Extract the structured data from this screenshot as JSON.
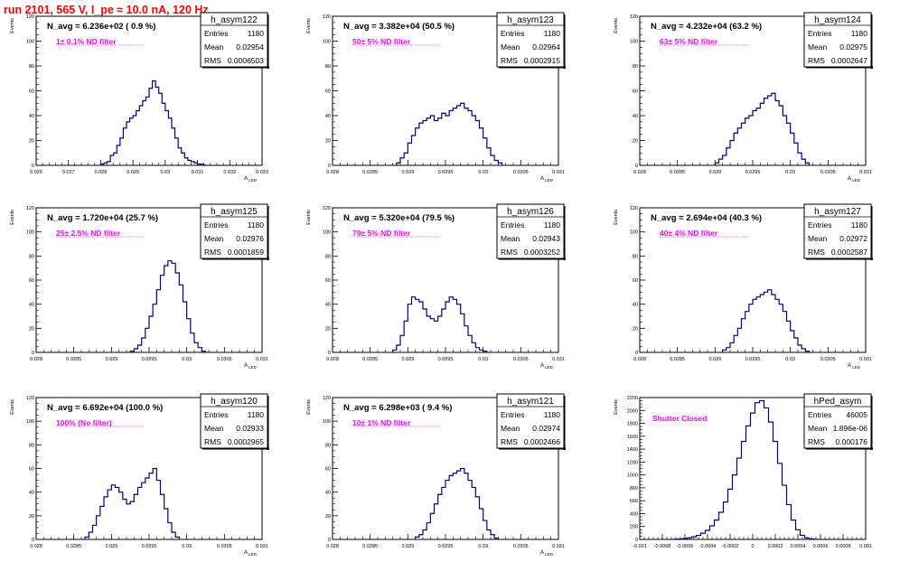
{
  "run_title": "run 2101,   565 V, I_pe ≈ 10.0 nA, 120 Hz",
  "chart_data": [
    {
      "type": "histogram",
      "hist_name": "h_asym122",
      "navg": "N_avg = 6.236e+02 ( 0.9 %)",
      "filter": "1± 0.1% ND filter",
      "stats": [
        [
          "Entries",
          "1180"
        ],
        [
          "Mean",
          "0.02954"
        ],
        [
          "RMS",
          "0.0006503"
        ]
      ],
      "xlim": [
        0.026,
        0.033
      ],
      "ylim": [
        0,
        120
      ],
      "xticks": [
        "0.026",
        "0.027",
        "0.028",
        "0.029",
        "0.03",
        "0.031",
        "0.032",
        "0.033"
      ],
      "yticks": [
        "0",
        "20",
        "40",
        "60",
        "80",
        "100",
        "120"
      ],
      "ylabel": "Events",
      "xlabel": "A_LED",
      "bins": {
        "x": [
          0.028,
          0.0281,
          0.0282,
          0.0283,
          0.0284,
          0.0285,
          0.0286,
          0.0287,
          0.0288,
          0.0289,
          0.029,
          0.0291,
          0.0292,
          0.0293,
          0.0294,
          0.0295,
          0.0296,
          0.0297,
          0.0298,
          0.0299,
          0.03,
          0.0301,
          0.0302,
          0.0303,
          0.0304,
          0.0305,
          0.0306,
          0.0307,
          0.0308,
          0.0309,
          0.031,
          0.0311,
          0.0312
        ],
        "y": [
          1,
          2,
          3,
          8,
          10,
          16,
          22,
          30,
          35,
          38,
          40,
          44,
          48,
          52,
          55,
          62,
          68,
          63,
          58,
          50,
          44,
          38,
          30,
          22,
          14,
          10,
          6,
          4,
          3,
          2,
          1,
          1,
          0
        ]
      }
    },
    {
      "type": "histogram",
      "hist_name": "h_asym123",
      "navg": "N_avg = 3.382e+04 (50.5 %)",
      "filter": "50± 5% ND filter",
      "stats": [
        [
          "Entries",
          "1180"
        ],
        [
          "Mean",
          "0.02964"
        ],
        [
          "RMS",
          "0.0002915"
        ]
      ],
      "xlim": [
        0.028,
        0.031
      ],
      "ylim": [
        0,
        120
      ],
      "xticks": [
        "0.028",
        "0.0285",
        "0.029",
        "0.0295",
        "0.03",
        "0.0305",
        "0.031"
      ],
      "yticks": [
        "0",
        "20",
        "40",
        "60",
        "80",
        "100",
        "120"
      ],
      "ylabel": "Events",
      "xlabel": "A_LED",
      "bins": {
        "x": [
          0.02885,
          0.0289,
          0.02895,
          0.029,
          0.02905,
          0.0291,
          0.02915,
          0.0292,
          0.02925,
          0.0293,
          0.02935,
          0.0294,
          0.02945,
          0.0295,
          0.02955,
          0.0296,
          0.02965,
          0.0297,
          0.02975,
          0.0298,
          0.02985,
          0.0299,
          0.02995,
          0.03,
          0.03005,
          0.0301,
          0.03015,
          0.0302
        ],
        "y": [
          2,
          6,
          10,
          18,
          24,
          30,
          34,
          36,
          38,
          40,
          36,
          38,
          42,
          40,
          44,
          46,
          48,
          50,
          46,
          44,
          40,
          36,
          30,
          22,
          14,
          8,
          4,
          2
        ]
      }
    },
    {
      "type": "histogram",
      "hist_name": "h_asym124",
      "navg": "N_avg = 4.232e+04 (63.2 %)",
      "filter": "63± 5% ND filter",
      "stats": [
        [
          "Entries",
          "1180"
        ],
        [
          "Mean",
          "0.02975"
        ],
        [
          "RMS",
          "0.0002647"
        ]
      ],
      "xlim": [
        0.028,
        0.031
      ],
      "ylim": [
        0,
        120
      ],
      "xticks": [
        "0.028",
        "0.0285",
        "0.029",
        "0.0295",
        "0.03",
        "0.0305",
        "0.031"
      ],
      "yticks": [
        "0",
        "20",
        "40",
        "60",
        "80",
        "100",
        "120"
      ],
      "ylabel": "Events",
      "xlabel": "A_LED",
      "bins": {
        "x": [
          0.029,
          0.02905,
          0.0291,
          0.02915,
          0.0292,
          0.02925,
          0.0293,
          0.02935,
          0.0294,
          0.02945,
          0.0295,
          0.02955,
          0.0296,
          0.02965,
          0.0297,
          0.02975,
          0.0298,
          0.02985,
          0.0299,
          0.02995,
          0.03,
          0.03005,
          0.0301,
          0.03015,
          0.0302
        ],
        "y": [
          2,
          5,
          8,
          14,
          20,
          26,
          30,
          34,
          38,
          40,
          44,
          46,
          50,
          54,
          56,
          58,
          52,
          48,
          40,
          34,
          26,
          18,
          10,
          5,
          2
        ]
      }
    },
    {
      "type": "histogram",
      "hist_name": "h_asym125",
      "navg": "N_avg = 1.720e+04 (25.7 %)",
      "filter": "25± 2.5% ND filter",
      "stats": [
        [
          "Entries",
          "1180"
        ],
        [
          "Mean",
          "0.02976"
        ],
        [
          "RMS",
          "0.0001859"
        ]
      ],
      "xlim": [
        0.028,
        0.031
      ],
      "ylim": [
        0,
        120
      ],
      "xticks": [
        "0.028",
        "0.0285",
        "0.029",
        "0.0295",
        "0.03",
        "0.0305",
        "0.031"
      ],
      "yticks": [
        "0",
        "20",
        "40",
        "60",
        "80",
        "100",
        "120"
      ],
      "ylabel": "Events",
      "xlabel": "A_LED",
      "bins": {
        "x": [
          0.02925,
          0.0293,
          0.02935,
          0.0294,
          0.02945,
          0.0295,
          0.02955,
          0.0296,
          0.02965,
          0.0297,
          0.02975,
          0.0298,
          0.02985,
          0.0299,
          0.02995,
          0.03,
          0.03005,
          0.0301,
          0.03015,
          0.0302
        ],
        "y": [
          1,
          3,
          6,
          12,
          20,
          30,
          40,
          52,
          64,
          72,
          76,
          74,
          66,
          56,
          42,
          28,
          16,
          8,
          4,
          1
        ]
      }
    },
    {
      "type": "histogram",
      "hist_name": "h_asym126",
      "navg": "N_avg = 5.320e+04 (79.5 %)",
      "filter": "79± 5% ND filter",
      "stats": [
        [
          "Entries",
          "1180"
        ],
        [
          "Mean",
          "0.02943"
        ],
        [
          "RMS",
          "0.0003252"
        ]
      ],
      "xlim": [
        0.028,
        0.031
      ],
      "ylim": [
        0,
        120
      ],
      "xticks": [
        "0.028",
        "0.0285",
        "0.029",
        "0.0295",
        "0.03",
        "0.0305",
        "0.031"
      ],
      "yticks": [
        "0",
        "20",
        "40",
        "60",
        "80",
        "100",
        "120"
      ],
      "ylabel": "Events",
      "xlabel": "A_LED",
      "bins": {
        "x": [
          0.0288,
          0.02885,
          0.0289,
          0.02895,
          0.029,
          0.02905,
          0.0291,
          0.02915,
          0.0292,
          0.02925,
          0.0293,
          0.02935,
          0.0294,
          0.02945,
          0.0295,
          0.02955,
          0.0296,
          0.02965,
          0.0297,
          0.02975,
          0.0298,
          0.02985,
          0.0299,
          0.02995,
          0.03
        ],
        "y": [
          2,
          6,
          14,
          26,
          40,
          46,
          44,
          42,
          36,
          30,
          28,
          26,
          30,
          36,
          42,
          46,
          44,
          40,
          32,
          22,
          14,
          8,
          4,
          2,
          1
        ]
      }
    },
    {
      "type": "histogram",
      "hist_name": "h_asym127",
      "navg": "N_avg = 2.694e+04 (40.3 %)",
      "filter": "40± 4% ND filter",
      "stats": [
        [
          "Entries",
          "1180"
        ],
        [
          "Mean",
          "0.02972"
        ],
        [
          "RMS",
          "0.0002587"
        ]
      ],
      "xlim": [
        0.028,
        0.031
      ],
      "ylim": [
        0,
        120
      ],
      "xticks": [
        "0.028",
        "0.0285",
        "0.029",
        "0.0295",
        "0.03",
        "0.0305",
        "0.031"
      ],
      "yticks": [
        "0",
        "20",
        "40",
        "60",
        "80",
        "100",
        "120"
      ],
      "ylabel": "Events",
      "xlabel": "A_LED",
      "bins": {
        "x": [
          0.0291,
          0.02915,
          0.0292,
          0.02925,
          0.0293,
          0.02935,
          0.0294,
          0.02945,
          0.0295,
          0.02955,
          0.0296,
          0.02965,
          0.0297,
          0.02975,
          0.0298,
          0.02985,
          0.0299,
          0.02995,
          0.03,
          0.03005,
          0.0301,
          0.03015,
          0.0302
        ],
        "y": [
          2,
          4,
          8,
          14,
          20,
          28,
          34,
          40,
          44,
          46,
          48,
          50,
          52,
          48,
          44,
          40,
          34,
          26,
          18,
          12,
          6,
          3,
          1
        ]
      }
    },
    {
      "type": "histogram",
      "hist_name": "h_asym120",
      "navg": "N_avg = 6.692e+04 (100.0 %)",
      "filter": "100% (No filter)",
      "stats": [
        [
          "Entries",
          "1180"
        ],
        [
          "Mean",
          "0.02933"
        ],
        [
          "RMS",
          "0.0002965"
        ]
      ],
      "xlim": [
        0.028,
        0.031
      ],
      "ylim": [
        0,
        120
      ],
      "xticks": [
        "0.028",
        "0.0285",
        "0.029",
        "0.0295",
        "0.03",
        "0.0305",
        "0.031"
      ],
      "yticks": [
        "0",
        "20",
        "40",
        "60",
        "80",
        "100",
        "120"
      ],
      "ylabel": "Events",
      "xlabel": "A_LED",
      "bins": {
        "x": [
          0.02865,
          0.0287,
          0.02875,
          0.0288,
          0.02885,
          0.0289,
          0.02895,
          0.029,
          0.02905,
          0.0291,
          0.02915,
          0.0292,
          0.02925,
          0.0293,
          0.02935,
          0.0294,
          0.02945,
          0.0295,
          0.02955,
          0.0296,
          0.02965,
          0.0297,
          0.02975,
          0.0298,
          0.02985
        ],
        "y": [
          2,
          6,
          12,
          20,
          28,
          36,
          42,
          46,
          44,
          40,
          34,
          30,
          32,
          38,
          44,
          48,
          52,
          56,
          60,
          50,
          38,
          26,
          14,
          6,
          2
        ]
      }
    },
    {
      "type": "histogram",
      "hist_name": "h_asym121",
      "navg": "N_avg = 6.298e+03 ( 9.4 %)",
      "filter": "10± 1% ND filter",
      "stats": [
        [
          "Entries",
          "1180"
        ],
        [
          "Mean",
          "0.02974"
        ],
        [
          "RMS",
          "0.0002466"
        ]
      ],
      "xlim": [
        0.028,
        0.031
      ],
      "ylim": [
        0,
        120
      ],
      "xticks": [
        "0.028",
        "0.0285",
        "0.029",
        "0.0295",
        "0.03",
        "0.0305",
        "0.031"
      ],
      "yticks": [
        "0",
        "20",
        "40",
        "60",
        "80",
        "100",
        "120"
      ],
      "ylabel": "Events",
      "xlabel": "A_LED",
      "bins": {
        "x": [
          0.0291,
          0.02915,
          0.0292,
          0.02925,
          0.0293,
          0.02935,
          0.0294,
          0.02945,
          0.0295,
          0.02955,
          0.0296,
          0.02965,
          0.0297,
          0.02975,
          0.0298,
          0.02985,
          0.0299,
          0.02995,
          0.03,
          0.03005,
          0.0301,
          0.03015
        ],
        "y": [
          2,
          4,
          8,
          14,
          22,
          30,
          38,
          44,
          50,
          54,
          56,
          58,
          60,
          56,
          50,
          44,
          36,
          26,
          16,
          8,
          4,
          1
        ]
      }
    },
    {
      "type": "histogram",
      "hist_name": "hPed_asym",
      "navg": "",
      "filter": "Shutter Closed",
      "stats": [
        [
          "Entries",
          "46005"
        ],
        [
          "Mean",
          "1.896e-06"
        ],
        [
          "RMS",
          "0.000176"
        ]
      ],
      "xlim": [
        -0.001,
        0.001
      ],
      "ylim": [
        0,
        2200
      ],
      "xticks": [
        "-0.001",
        "-0.0008",
        "-0.0006",
        "-0.0004",
        "-0.0002",
        "0",
        "0.0002",
        "0.0004",
        "0.0006",
        "0.0008",
        "0.001"
      ],
      "yticks": [
        "0",
        "200",
        "400",
        "600",
        "800",
        "1000",
        "1200",
        "1400",
        "1600",
        "1800",
        "2000",
        "2200"
      ],
      "ylabel": "Events",
      "xlabel": "",
      "bins": {
        "x": [
          -0.0007,
          -0.00066,
          -0.00062,
          -0.00058,
          -0.00054,
          -0.0005,
          -0.00046,
          -0.00042,
          -0.00038,
          -0.00034,
          -0.0003,
          -0.00026,
          -0.00022,
          -0.00018,
          -0.00014,
          -0.0001,
          -6e-05,
          -2e-05,
          2e-05,
          6e-05,
          0.0001,
          0.00014,
          0.00018,
          0.00022,
          0.00026,
          0.0003,
          0.00034,
          0.00038,
          0.00042,
          0.00046,
          0.0005,
          0.00054
        ],
        "y": [
          4,
          8,
          14,
          24,
          40,
          62,
          96,
          140,
          210,
          300,
          420,
          580,
          780,
          1000,
          1260,
          1520,
          1760,
          1960,
          2120,
          2150,
          2040,
          1820,
          1520,
          1180,
          840,
          540,
          300,
          150,
          64,
          24,
          8,
          2
        ]
      }
    }
  ]
}
